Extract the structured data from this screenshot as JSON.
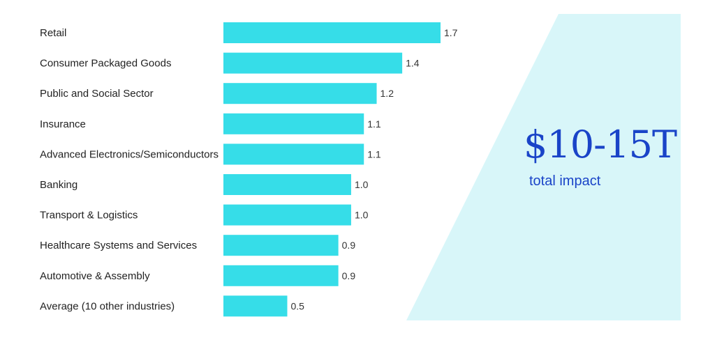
{
  "chart_data": {
    "type": "bar",
    "orientation": "horizontal",
    "categories": [
      "Retail",
      "Consumer Packaged Goods",
      "Public and Social Sector",
      "Insurance",
      "Advanced Electronics/Semiconductors",
      "Banking",
      "Transport & Logistics",
      "Healthcare Systems and Services",
      "Automotive & Assembly",
      "Average (10 other industries)"
    ],
    "values": [
      1.7,
      1.4,
      1.2,
      1.1,
      1.1,
      1.0,
      1.0,
      0.9,
      0.9,
      0.5
    ],
    "value_labels": [
      "1.7",
      "1.4",
      "1.2",
      "1.1",
      "1.1",
      "1.0",
      "1.0",
      "0.9",
      "0.9",
      "0.5"
    ],
    "xlim": [
      0,
      1.7
    ],
    "title": "",
    "xlabel": "",
    "ylabel": ""
  },
  "callout": {
    "headline": "$10-15T",
    "subline": "total impact"
  },
  "colors": {
    "bar": "#36dde8",
    "panel": "#d8f6f9",
    "accent_text": "#1a44c8"
  }
}
